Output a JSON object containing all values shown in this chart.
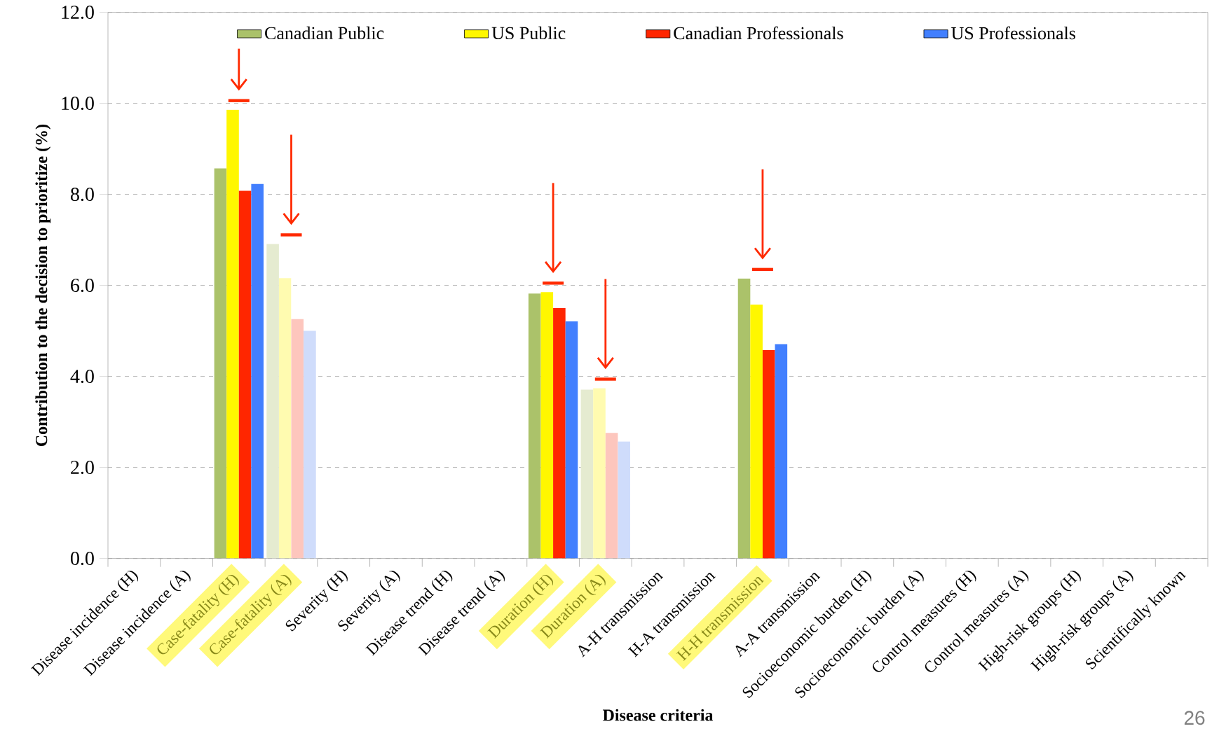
{
  "chart_data": {
    "type": "bar",
    "xlabel": "Disease criteria",
    "ylabel": "Contribution to the decision to prioritize (%)",
    "categories": [
      "Disease incidence (H)",
      "Disease incidence (A)",
      "Case-fatality (H)",
      "Case-fatality (A)",
      "Severity (H)",
      "Severity (A)",
      "Disease trend (H)",
      "Disease trend (A)",
      "Duration (H)",
      "Duration (A)",
      "A-H transmission",
      "H-A transmission",
      "H-H transmission",
      "A-A transmission",
      "Socioeconomic burden (H)",
      "Socioeconomic burden (A)",
      "Control measures (H)",
      "Control measures (A)",
      "High-risk groups (H)",
      "High-risk groups (A)",
      "Scientifically known"
    ],
    "series": [
      {
        "name": "Canadian Public",
        "color": "#abc26a",
        "colors": [
          "#abc26a",
          "#abc26a",
          "#abc26a",
          "#e5ebd0",
          "#abc26a",
          "#abc26a",
          "#abc26a",
          "#abc26a",
          "#abc26a",
          "#e5ebd0",
          "#abc26a",
          "#abc26a",
          "#abc26a",
          "#abc26a",
          "#abc26a",
          "#abc26a",
          "#abc26a",
          "#abc26a",
          "#abc26a",
          "#abc26a",
          "#abc26a"
        ],
        "values": [
          null,
          null,
          8.57,
          6.91,
          null,
          null,
          null,
          null,
          5.82,
          3.71,
          null,
          null,
          6.15,
          null,
          null,
          null,
          null,
          null,
          null,
          null,
          null
        ]
      },
      {
        "name": "US Public",
        "color": "#fff700",
        "colors": [
          "#fff700",
          "#fff700",
          "#fff700",
          "#fffbb0",
          "#fff700",
          "#fff700",
          "#fff700",
          "#fff700",
          "#fff700",
          "#fffbb0",
          "#fff700",
          "#fff700",
          "#fff700",
          "#fff700",
          "#fff700",
          "#fff700",
          "#fff700",
          "#fff700",
          "#fff700",
          "#fff700",
          "#fff700"
        ],
        "values": [
          null,
          null,
          9.86,
          6.16,
          null,
          null,
          null,
          null,
          5.85,
          3.74,
          null,
          null,
          5.58,
          null,
          null,
          null,
          null,
          null,
          null,
          null,
          null
        ]
      },
      {
        "name": "Canadian Professionals",
        "color": "#ff2600",
        "colors": [
          "#ff2600",
          "#ff2600",
          "#ff2600",
          "#fdc6bd",
          "#ff2600",
          "#ff2600",
          "#ff2600",
          "#ff2600",
          "#ff2600",
          "#fdc6bd",
          "#ff2600",
          "#ff2600",
          "#ff2600",
          "#ff2600",
          "#ff2600",
          "#ff2600",
          "#ff2600",
          "#ff2600",
          "#ff2600",
          "#ff2600",
          "#ff2600"
        ],
        "values": [
          null,
          null,
          8.08,
          5.26,
          null,
          null,
          null,
          null,
          5.5,
          2.76,
          null,
          null,
          4.58,
          null,
          null,
          null,
          null,
          null,
          null,
          null,
          null
        ]
      },
      {
        "name": "US Professionals",
        "color": "#427ffe",
        "colors": [
          "#427ffe",
          "#427ffe",
          "#427ffe",
          "#cfdcfb",
          "#427ffe",
          "#427ffe",
          "#427ffe",
          "#427ffe",
          "#427ffe",
          "#cfdcfb",
          "#427ffe",
          "#427ffe",
          "#427ffe",
          "#427ffe",
          "#427ffe",
          "#427ffe",
          "#427ffe",
          "#427ffe",
          "#427ffe",
          "#427ffe",
          "#427ffe"
        ],
        "values": [
          null,
          null,
          8.23,
          5.0,
          null,
          null,
          null,
          null,
          5.21,
          2.57,
          null,
          null,
          4.71,
          null,
          null,
          null,
          null,
          null,
          null,
          null,
          null
        ]
      }
    ],
    "ylim": [
      0,
      12
    ],
    "yticks": [
      {
        "value": 0,
        "label": "0.0"
      },
      {
        "value": 2,
        "label": "2.0"
      },
      {
        "value": 4,
        "label": "4.0"
      },
      {
        "value": 6,
        "label": "6.0"
      },
      {
        "value": 8,
        "label": "8.0"
      },
      {
        "value": 10,
        "label": "10.0"
      },
      {
        "value": 12,
        "label": "12.0"
      }
    ],
    "grid": "y",
    "legend": "top",
    "annotations": [
      "26"
    ]
  }
}
